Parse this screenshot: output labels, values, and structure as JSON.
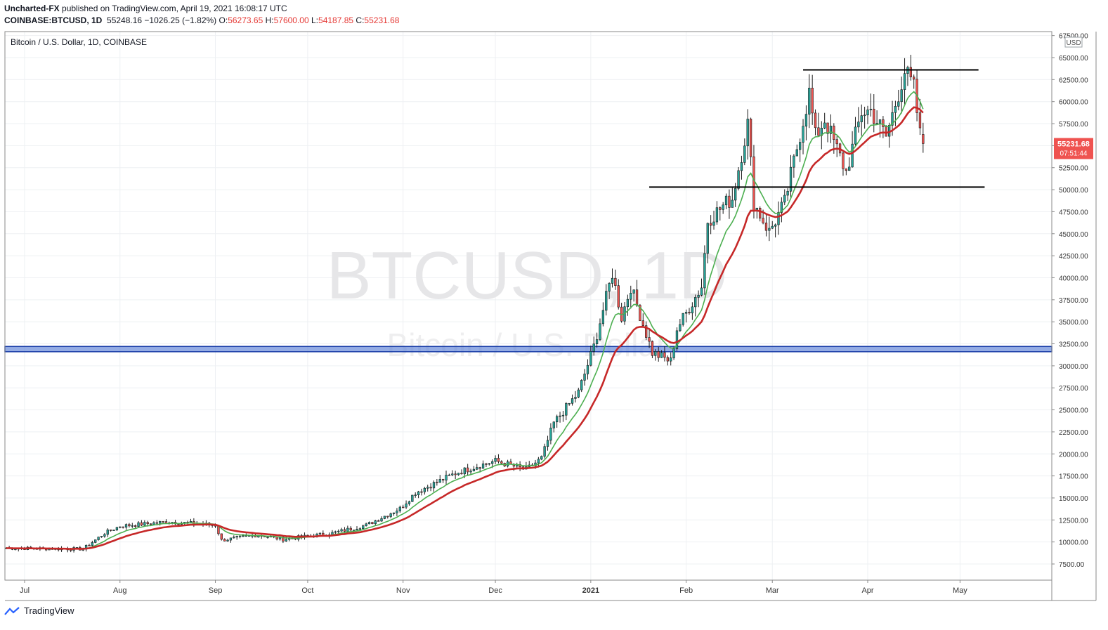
{
  "header": {
    "publisher": "Uncharted-FX",
    "published_text": "published on TradingView.com, April 19, 2021 16:08:17 UTC",
    "symbol": "COINBASE:BTCUSD, 1D",
    "last": "55248.16",
    "change": "−1026.25 (−1.82%)",
    "o_label": "O:",
    "o_value": "56273.65",
    "h_label": "H:",
    "h_value": "57600.00",
    "l_label": "L:",
    "l_value": "54187.85",
    "c_label": "C:",
    "c_value": "55231.68"
  },
  "legend_text": "Bitcoin / U.S. Dollar, 1D, COINBASE",
  "watermark_main": "BTCUSD, 1D",
  "watermark_sub": "Bitcoin / U.S. Dollar",
  "currency_badge": "USD",
  "price_tag": {
    "value": "55231.68",
    "timer": "07:51:44"
  },
  "footer_brand": "TradingView",
  "colors": {
    "up": "#26a69a",
    "down": "#ef5350",
    "candle_outline": "#1a1a1a",
    "ema_fast": "#4caf50",
    "ema_slow": "#c62828",
    "zone_fill": "#5b7fd6",
    "zone_border": "#1a3ea8",
    "grid": "#eef0f3",
    "level": "#000000"
  },
  "chart_data": {
    "type": "candlestick",
    "y_axis": {
      "min": 6000,
      "max": 67500,
      "ticks": [
        "7500.00",
        "10000.00",
        "12500.00",
        "15000.00",
        "17500.00",
        "20000.00",
        "22500.00",
        "25000.00",
        "27500.00",
        "30000.00",
        "32500.00",
        "35000.00",
        "37500.00",
        "40000.00",
        "42500.00",
        "45000.00",
        "47500.00",
        "50000.00",
        "52500.00",
        "55000.00",
        "57500.00",
        "60000.00",
        "62500.00",
        "65000.00",
        "67500.00"
      ]
    },
    "x_axis": {
      "labels": [
        {
          "date": "2020-07-01",
          "text": "Jul"
        },
        {
          "date": "2020-08-01",
          "text": "Aug"
        },
        {
          "date": "2020-09-01",
          "text": "Sep"
        },
        {
          "date": "2020-10-01",
          "text": "Oct"
        },
        {
          "date": "2020-11-01",
          "text": "Nov"
        },
        {
          "date": "2020-12-01",
          "text": "Dec"
        },
        {
          "date": "2021-01-01",
          "text": "2021"
        },
        {
          "date": "2021-02-01",
          "text": "Feb"
        },
        {
          "date": "2021-03-01",
          "text": "Mar"
        },
        {
          "date": "2021-04-01",
          "text": "Apr"
        },
        {
          "date": "2021-05-01",
          "text": "May"
        }
      ]
    },
    "close_keypoints": [
      [
        "2020-06-25",
        9300
      ],
      [
        "2020-07-20",
        9200
      ],
      [
        "2020-07-27",
        11000
      ],
      [
        "2020-08-01",
        11800
      ],
      [
        "2020-08-17",
        12300
      ],
      [
        "2020-09-01",
        11900
      ],
      [
        "2020-09-03",
        10200
      ],
      [
        "2020-09-15",
        10800
      ],
      [
        "2020-09-23",
        10300
      ],
      [
        "2020-10-09",
        11000
      ],
      [
        "2020-10-20",
        11900
      ],
      [
        "2020-10-31",
        13800
      ],
      [
        "2020-11-05",
        15600
      ],
      [
        "2020-11-18",
        17800
      ],
      [
        "2020-11-25",
        18600
      ],
      [
        "2020-12-01",
        19200
      ],
      [
        "2020-12-11",
        18200
      ],
      [
        "2020-12-16",
        19500
      ],
      [
        "2020-12-20",
        23500
      ],
      [
        "2020-12-28",
        27000
      ],
      [
        "2021-01-02",
        32200
      ],
      [
        "2021-01-08",
        40500
      ],
      [
        "2021-01-11",
        35500
      ],
      [
        "2021-01-14",
        39000
      ],
      [
        "2021-01-21",
        31500
      ],
      [
        "2021-01-27",
        30500
      ],
      [
        "2021-01-29",
        34200
      ],
      [
        "2021-02-06",
        39000
      ],
      [
        "2021-02-08",
        46500
      ],
      [
        "2021-02-14",
        48500
      ],
      [
        "2021-02-16",
        49000
      ],
      [
        "2021-02-21",
        57500
      ],
      [
        "2021-02-23",
        48500
      ],
      [
        "2021-02-28",
        45200
      ],
      [
        "2021-03-05",
        48500
      ],
      [
        "2021-03-13",
        61000
      ],
      [
        "2021-03-15",
        56000
      ],
      [
        "2021-03-18",
        58000
      ],
      [
        "2021-03-25",
        52000
      ],
      [
        "2021-03-30",
        58800
      ],
      [
        "2021-04-02",
        59000
      ],
      [
        "2021-04-07",
        56000
      ],
      [
        "2021-04-13",
        63500
      ],
      [
        "2021-04-16",
        61500
      ],
      [
        "2021-04-18",
        56200
      ],
      [
        "2021-04-19",
        55231.68
      ]
    ],
    "last_candle": {
      "date": "2021-04-19",
      "open": 56273.65,
      "high": 57600.0,
      "low": 54187.85,
      "close": 55231.68
    },
    "ema_fast_period": 10,
    "ema_slow_period": 21,
    "annotations": [
      {
        "type": "horizontal_line",
        "price": 63600,
        "from": "2021-03-11",
        "to": "2021-05-07"
      },
      {
        "type": "horizontal_line",
        "price": 50300,
        "from": "2021-01-20",
        "to": "2021-05-09"
      },
      {
        "type": "zone",
        "price_low": 31600,
        "price_high": 32200
      }
    ]
  }
}
